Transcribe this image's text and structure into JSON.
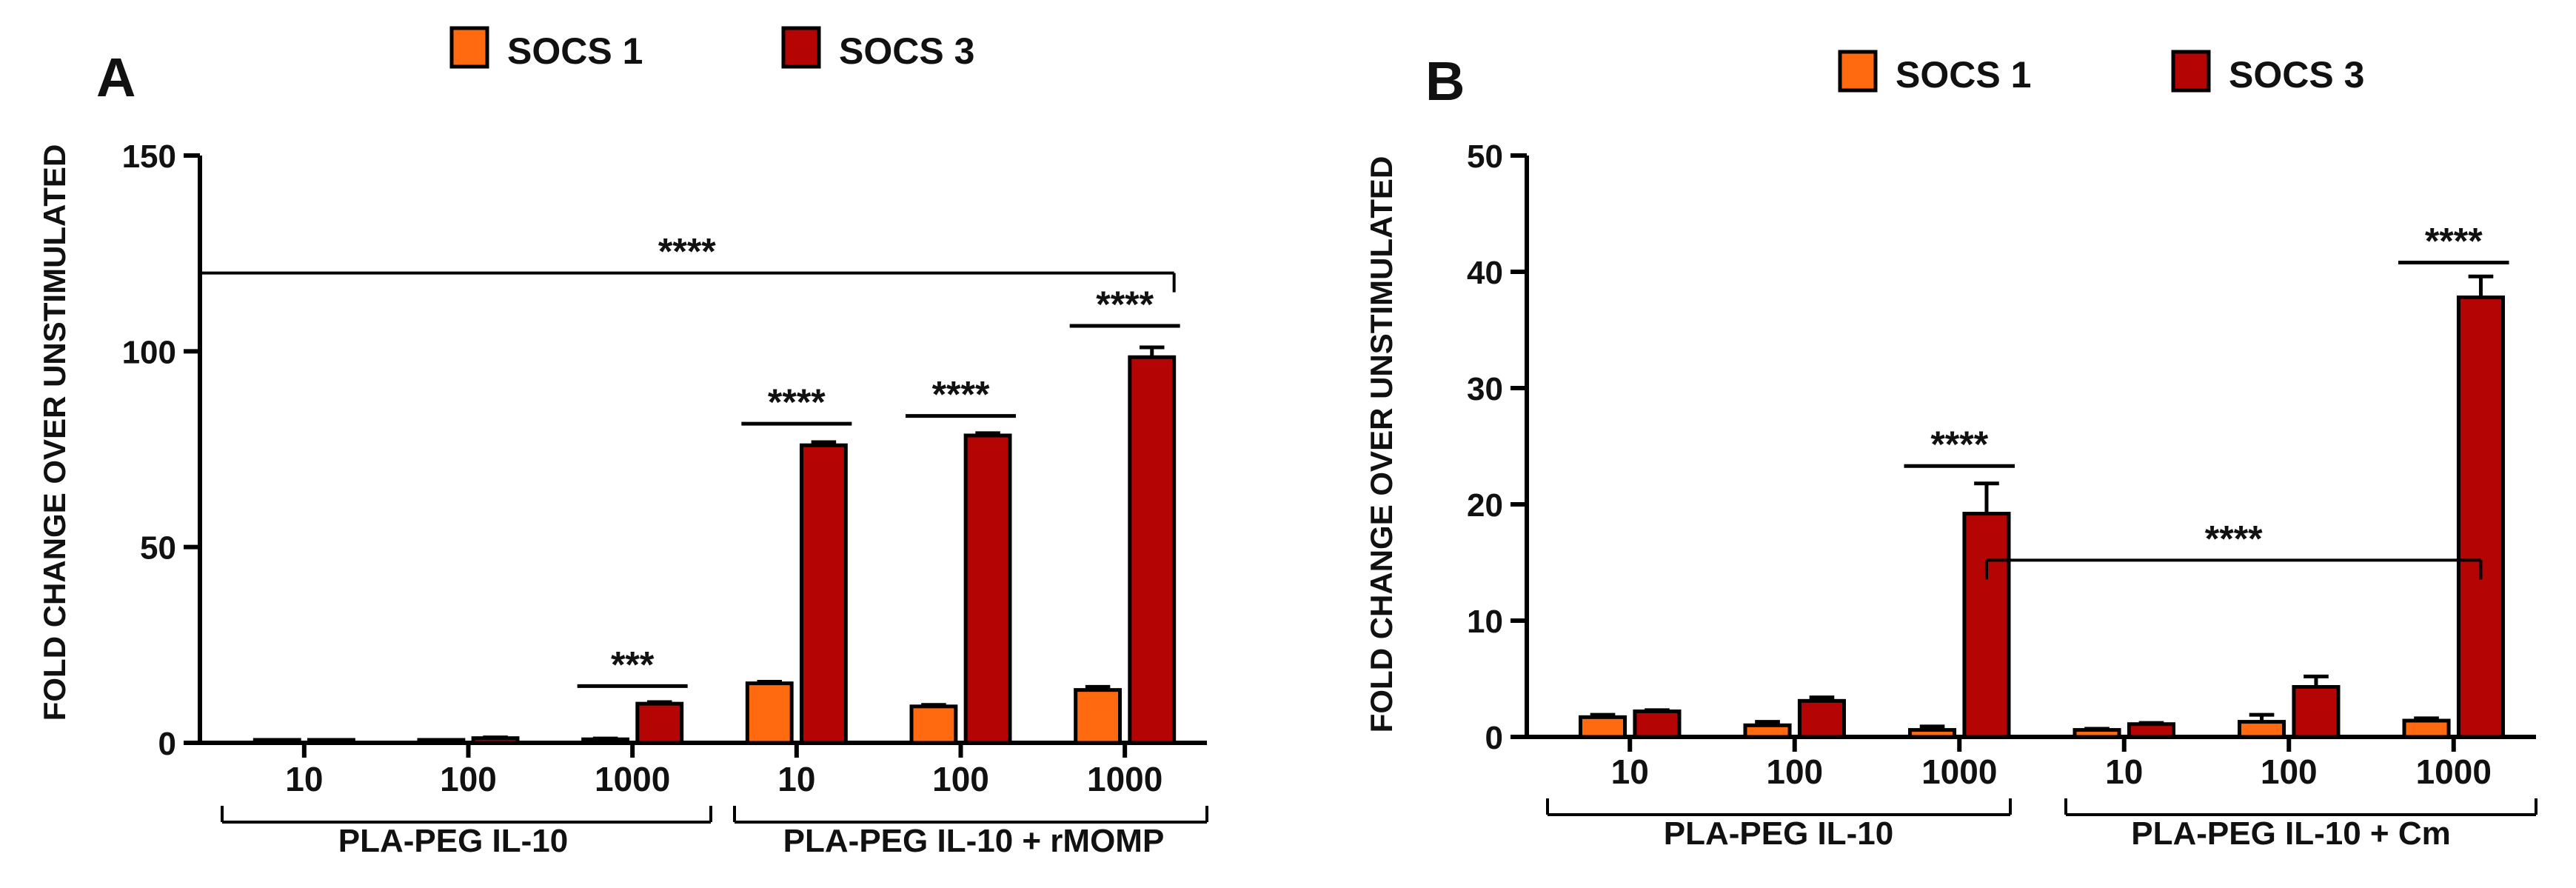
{
  "figure": {
    "panel_count": 2
  },
  "colors": {
    "socs1": "#ff6a10",
    "socs3": "#b50404",
    "outline": "#000000",
    "text": "#111111"
  },
  "chart_data": [
    {
      "panel": "A",
      "type": "bar",
      "ylabel": "FOLD CHANGE OVER UNSTIMULATED",
      "ylim": [
        0,
        150
      ],
      "yticks": [
        0,
        50,
        100,
        150
      ],
      "categories": [
        "10",
        "100",
        "1000",
        "10",
        "100",
        "1000"
      ],
      "groups": [
        {
          "label": "PLA-PEG IL-10",
          "from": 0,
          "to": 2
        },
        {
          "label": "PLA-PEG IL-10 + rMOMP",
          "from": 3,
          "to": 5
        }
      ],
      "series": [
        {
          "name": "SOCS 1",
          "values": [
            0.4,
            0.5,
            0.9,
            15.2,
            9.3,
            13.5
          ],
          "errors": [
            0.1,
            0.1,
            0.2,
            0.4,
            0.4,
            0.8
          ]
        },
        {
          "name": "SOCS 3",
          "values": [
            0.5,
            1.2,
            10.0,
            76.0,
            78.5,
            98.5
          ],
          "errors": [
            0.1,
            0.2,
            0.4,
            0.8,
            0.6,
            2.5
          ]
        }
      ],
      "significance": [
        {
          "label": "***",
          "category": 2,
          "y": 14.5
        },
        {
          "label": "****",
          "category": 3,
          "y": 81.5
        },
        {
          "label": "****",
          "category": 4,
          "y": 83.5
        },
        {
          "label": "****",
          "category": 5,
          "y": 106.5
        },
        {
          "label": "****",
          "span": [
            0,
            5
          ],
          "y": 120,
          "style": "bracket-down"
        }
      ]
    },
    {
      "panel": "B",
      "type": "bar",
      "ylabel": "FOLD CHANGE OVER UNSTIMULATED",
      "ylim": [
        0,
        50
      ],
      "yticks": [
        0,
        10,
        20,
        30,
        40,
        50
      ],
      "categories": [
        "10",
        "100",
        "1000",
        "10",
        "100",
        "1000"
      ],
      "groups": [
        {
          "label": "PLA-PEG IL-10",
          "from": 0,
          "to": 2
        },
        {
          "label": "PLA-PEG IL-10 + Cm",
          "from": 3,
          "to": 5
        }
      ],
      "series": [
        {
          "name": "SOCS 1",
          "values": [
            1.7,
            1.0,
            0.6,
            0.6,
            1.3,
            1.4
          ],
          "errors": [
            0.2,
            0.3,
            0.3,
            0.1,
            0.6,
            0.2
          ]
        },
        {
          "name": "SOCS 3",
          "values": [
            2.2,
            3.1,
            19.2,
            1.1,
            4.3,
            37.8
          ],
          "errors": [
            0.1,
            0.3,
            2.6,
            0.1,
            0.9,
            1.8
          ]
        }
      ],
      "significance": [
        {
          "label": "****",
          "category": 2,
          "y": 23.3
        },
        {
          "label": "****",
          "category": 5,
          "y": 40.8
        },
        {
          "label": "****",
          "span": [
            2,
            5
          ],
          "y": 15.2,
          "style": "bracket-down",
          "on": "SOCS 3"
        }
      ]
    }
  ]
}
